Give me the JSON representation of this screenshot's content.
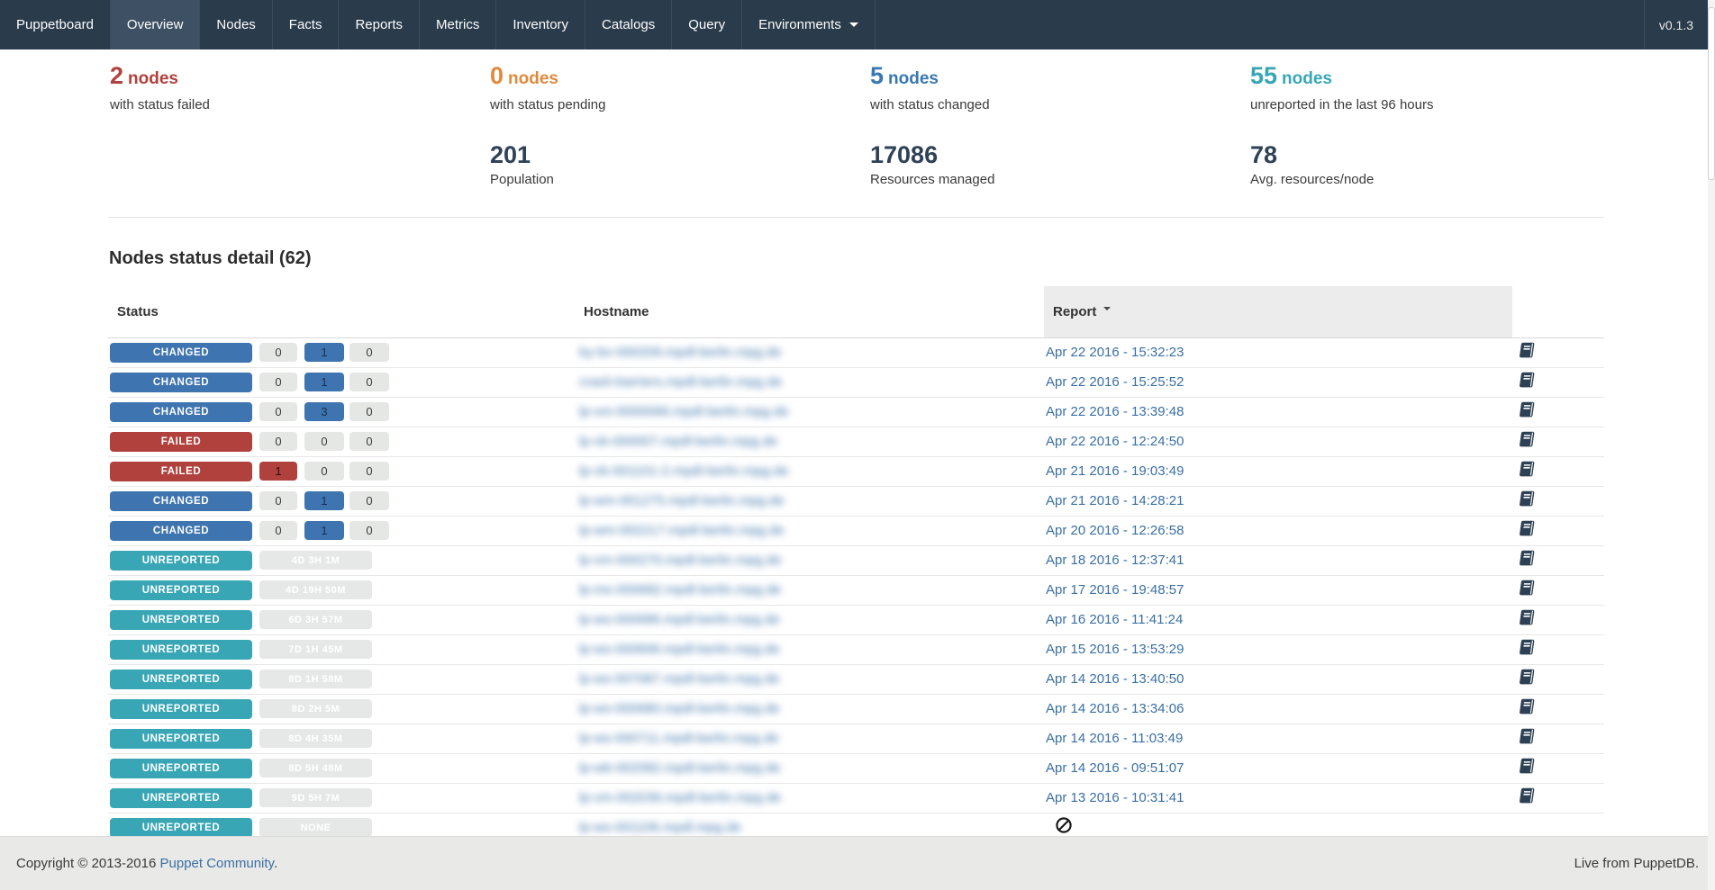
{
  "navbar": {
    "brand": "Puppetboard",
    "items": [
      "Overview",
      "Nodes",
      "Facts",
      "Reports",
      "Metrics",
      "Inventory",
      "Catalogs",
      "Query",
      "Environments"
    ],
    "active_item": "Overview",
    "dropdown_item": "Environments",
    "version": "v0.1.3"
  },
  "summary": {
    "stats": [
      {
        "value": "2",
        "unit": "nodes",
        "description": "with status failed",
        "color": "#b1413d"
      },
      {
        "value": "0",
        "unit": "nodes",
        "description": "with status pending",
        "color": "#e08a3c"
      },
      {
        "value": "5",
        "unit": "nodes",
        "description": "with status changed",
        "color": "#3878b3"
      },
      {
        "value": "55",
        "unit": "nodes",
        "description": "unreported in the last 96 hours",
        "color": "#38a6b5"
      }
    ],
    "totals": [
      {
        "value": "201",
        "label": "Population"
      },
      {
        "value": "17086",
        "label": "Resources managed"
      },
      {
        "value": "78",
        "label": "Avg. resources/node"
      }
    ]
  },
  "nodes_detail": {
    "heading": "Nodes status detail (62)",
    "columns": {
      "status": "Status",
      "hostname": "Hostname",
      "report": "Report"
    },
    "sorted_by": "Report",
    "sort_direction": "desc",
    "hostnames_redacted": true,
    "rows": [
      {
        "status": "CHANGED",
        "counts": [
          {
            "value": "0",
            "variant": "gray"
          },
          {
            "value": "1",
            "variant": "blue"
          },
          {
            "value": "0",
            "variant": "gray"
          }
        ],
        "hostname": "by-bv-000209.mpdl-berlin.mpg.de",
        "report": "Apr 22 2016 - 15:32:23",
        "report_icon": "book"
      },
      {
        "status": "CHANGED",
        "counts": [
          {
            "value": "0",
            "variant": "gray"
          },
          {
            "value": "1",
            "variant": "blue"
          },
          {
            "value": "0",
            "variant": "gray"
          }
        ],
        "hostname": "crash-barriers.mpdl-berlin.mpg.de",
        "report": "Apr 22 2016 - 15:25:52",
        "report_icon": "book"
      },
      {
        "status": "CHANGED",
        "counts": [
          {
            "value": "0",
            "variant": "gray"
          },
          {
            "value": "3",
            "variant": "blue"
          },
          {
            "value": "0",
            "variant": "gray"
          }
        ],
        "hostname": "lp-vm-0000066.mpdl-berlin.mpg.de",
        "report": "Apr 22 2016 - 13:39:48",
        "report_icon": "book"
      },
      {
        "status": "FAILED",
        "counts": [
          {
            "value": "0",
            "variant": "gray"
          },
          {
            "value": "0",
            "variant": "gray"
          },
          {
            "value": "0",
            "variant": "gray"
          }
        ],
        "hostname": "lp-vb-000007.mpdl-berlin.mpg.de",
        "report": "Apr 22 2016 - 12:24:50",
        "report_icon": "book"
      },
      {
        "status": "FAILED",
        "counts": [
          {
            "value": "1",
            "variant": "red"
          },
          {
            "value": "0",
            "variant": "gray"
          },
          {
            "value": "0",
            "variant": "gray"
          }
        ],
        "hostname": "lp-vb-001101-2.mpdl-berlin.mpg.de",
        "report": "Apr 21 2016 - 19:03:49",
        "report_icon": "book"
      },
      {
        "status": "CHANGED",
        "counts": [
          {
            "value": "0",
            "variant": "gray"
          },
          {
            "value": "1",
            "variant": "blue"
          },
          {
            "value": "0",
            "variant": "gray"
          }
        ],
        "hostname": "lp-wm-001275.mpdl-berlin.mpg.de",
        "report": "Apr 21 2016 - 14:28:21",
        "report_icon": "book"
      },
      {
        "status": "CHANGED",
        "counts": [
          {
            "value": "0",
            "variant": "gray"
          },
          {
            "value": "1",
            "variant": "blue"
          },
          {
            "value": "0",
            "variant": "gray"
          }
        ],
        "hostname": "lp-wm-002217.mpdl-berlin.mpg.de",
        "report": "Apr 20 2016 - 12:26:58",
        "report_icon": "book"
      },
      {
        "status": "UNREPORTED",
        "time": "4D 3H 1M",
        "hostname": "lp-vm-000270.mpdl-berlin.mpg.de",
        "report": "Apr 18 2016 - 12:37:41",
        "report_icon": "book"
      },
      {
        "status": "UNREPORTED",
        "time": "4D 19H 50M",
        "hostname": "lp-ms-000682.mpdl-berlin.mpg.de",
        "report": "Apr 17 2016 - 19:48:57",
        "report_icon": "book"
      },
      {
        "status": "UNREPORTED",
        "time": "6D 3H 57M",
        "hostname": "lp-ws-000686.mpdl-berlin.mpg.de",
        "report": "Apr 16 2016 - 11:41:24",
        "report_icon": "book"
      },
      {
        "status": "UNREPORTED",
        "time": "7D 1H 45M",
        "hostname": "lp-ws-000696.mpdl-berlin.mpg.de",
        "report": "Apr 15 2016 - 13:53:29",
        "report_icon": "book"
      },
      {
        "status": "UNREPORTED",
        "time": "8D 1H 58M",
        "hostname": "lp-ws-007087.mpdl-berlin.mpg.de",
        "report": "Apr 14 2016 - 13:40:50",
        "report_icon": "book"
      },
      {
        "status": "UNREPORTED",
        "time": "8D 2H 5M",
        "hostname": "lp-ws-000680.mpdl-berlin.mpg.de",
        "report": "Apr 14 2016 - 13:34:06",
        "report_icon": "book"
      },
      {
        "status": "UNREPORTED",
        "time": "8D 4H 35M",
        "hostname": "lp-ws-000711.mpdl-berlin.mpg.de",
        "report": "Apr 14 2016 - 11:03:49",
        "report_icon": "book"
      },
      {
        "status": "UNREPORTED",
        "time": "8D 5H 48M",
        "hostname": "lp-wb-002082.mpdl-berlin.mpg.de",
        "report": "Apr 14 2016 - 09:51:07",
        "report_icon": "book"
      },
      {
        "status": "UNREPORTED",
        "time": "9D 5H 7M",
        "hostname": "lp-vm-002036.mpdl-berlin.mpg.de",
        "report": "Apr 13 2016 - 10:31:41",
        "report_icon": "book"
      },
      {
        "status": "UNREPORTED",
        "time": "NONE",
        "hostname": "lp-ws-001106.mpdl.mpg.de",
        "report": null,
        "no_report_icon": "ban",
        "report_icon": null
      }
    ]
  },
  "footer": {
    "left_prefix": "Copyright © 2013-2016",
    "left_link": "Puppet Community",
    "left_suffix": ".",
    "right": "Live from PuppetDB."
  },
  "colors": {
    "navbar_bg": "#2a3b4c",
    "navbar_active_bg": "#3e5164",
    "failed": "#b1413d",
    "pending": "#e08a3c",
    "changed": "#3e74b0",
    "unreported": "#38a6b5",
    "link": "#3a6fa5",
    "big_number": "#2e4156",
    "sorted_header_bg": "#ececec",
    "footer_bg": "#e9e9e7"
  }
}
